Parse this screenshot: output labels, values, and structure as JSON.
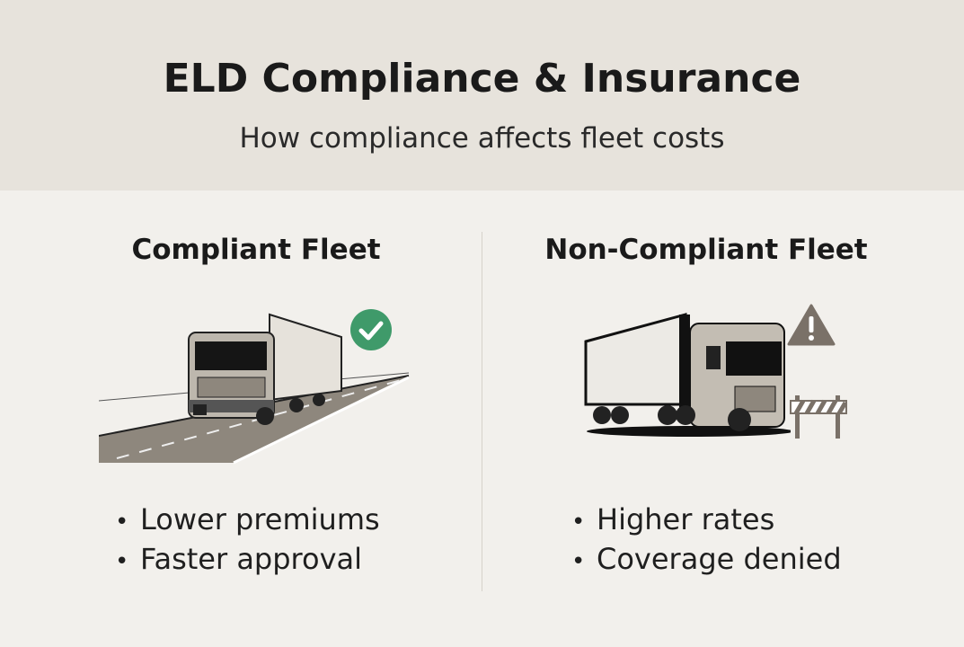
{
  "header": {
    "title": "ELD Compliance & Insurance",
    "subtitle": "How compliance affects fleet costs"
  },
  "compliant": {
    "title": "Compliant Fleet",
    "bullets": [
      "Lower premiums",
      "Faster approval"
    ],
    "status_icon": "check-circle-icon",
    "status_color": "#3f9a6a"
  },
  "non_compliant": {
    "title": "Non-Compliant Fleet",
    "bullets": [
      "Higher rates",
      "Coverage denied"
    ],
    "status_icon": "warning-triangle-icon",
    "status_color": "#7a7168"
  }
}
